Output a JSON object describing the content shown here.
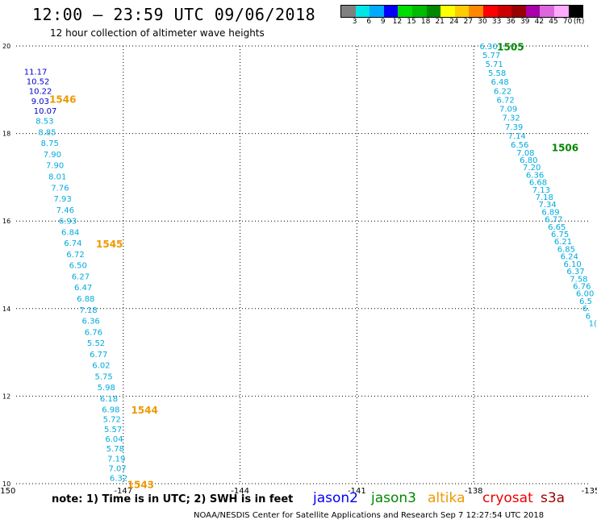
{
  "header": {
    "title": "12:00 – 23:59 UTC 09/06/2018",
    "subtitle": "12 hour collection of altimeter wave heights"
  },
  "colorbar": {
    "colors": [
      "#808080",
      "#00e5e5",
      "#00aaff",
      "#0000ff",
      "#00dd00",
      "#00bb00",
      "#008800",
      "#ffff00",
      "#ffcc00",
      "#ff8800",
      "#ff0000",
      "#cc0000",
      "#990000",
      "#aa00aa",
      "#dd66dd",
      "#ffaaff",
      "#000000"
    ],
    "labels": [
      "3",
      "6",
      "9",
      "12",
      "15",
      "18",
      "21",
      "24",
      "27",
      "30",
      "33",
      "36",
      "39",
      "42",
      "45",
      "70",
      "(ft)"
    ]
  },
  "map": {
    "lon_ticks": [
      "-150",
      "-147",
      "-144",
      "-141",
      "-138",
      "-135"
    ],
    "lat_ticks": [
      "20",
      "18",
      "16",
      "14",
      "12",
      "10"
    ],
    "lon_range": [
      -150,
      -135
    ],
    "lat_range": [
      10,
      20
    ]
  },
  "pass_labels": [
    {
      "text": "1505",
      "lon": -137.4,
      "lat": 19.9,
      "color": "#008800"
    },
    {
      "text": "1506",
      "lon": -136.0,
      "lat": 17.6,
      "color": "#008800"
    },
    {
      "text": "1546",
      "lon": -148.9,
      "lat": 18.7,
      "color": "#ee9900"
    },
    {
      "text": "1545",
      "lon": -147.7,
      "lat": 15.4,
      "color": "#ee9900"
    },
    {
      "text": "1544",
      "lon": -146.8,
      "lat": 11.6,
      "color": "#ee9900"
    },
    {
      "text": "1543",
      "lon": -146.9,
      "lat": 9.9,
      "color": "#ee9900"
    }
  ],
  "tracks": [
    {
      "name": "jason2-1546",
      "color": "#0000cc",
      "lat_start": 19.35,
      "lat_end": 18.45,
      "lon_start": -149.55,
      "lon_end": -149.3,
      "values": [
        "11.17",
        "10.52",
        "10.22",
        "9.03",
        "10.07"
      ]
    },
    {
      "name": "altika-1545",
      "color": "#00aadd",
      "lat_start": 18.22,
      "lat_end": 11.88,
      "lon_start": -149.25,
      "lon_end": -147.6,
      "values": [
        "8.53",
        "8.85",
        "8.75",
        "7.90",
        "7.90",
        "8.01",
        "7.76",
        "7.93",
        "7.46",
        "6.93",
        "6.84",
        "6.74",
        "6.72",
        "6.50",
        "6.27",
        "6.47",
        "6.88",
        "7.18",
        "6.36",
        "6.76",
        "5.52",
        "6.77",
        "6.02",
        "5.75",
        "5.98",
        "6.18"
      ]
    },
    {
      "name": "altika-1544",
      "color": "#00aadd",
      "lat_start": 11.63,
      "lat_end": 10.06,
      "lon_start": -147.55,
      "lon_end": -147.35,
      "values": [
        "6.98",
        "5.72",
        "5.57",
        "6.04",
        "5.78",
        "7.19",
        "7.07",
        "6.32"
      ]
    },
    {
      "name": "jason3-1505",
      "color": "#00aadd",
      "lat_start": 19.93,
      "lat_end": 17.68,
      "lon_start": -137.85,
      "lon_end": -137.05,
      "values": [
        "6.30",
        "5.77",
        "5.71",
        "5.58",
        "6.48",
        "6.22",
        "6.72",
        "7.09",
        "7.32",
        "7.39",
        "7.14",
        "6.56"
      ]
    },
    {
      "name": "jason3-1506",
      "color": "#00aadd",
      "lat_start": 17.5,
      "lat_end": 13.6,
      "lon_start": -136.9,
      "lon_end": -135.05,
      "values": [
        "7.08",
        "6.80",
        "7.20",
        "6.36",
        "6.68",
        "7.13",
        "7.18",
        "7.34",
        "6.89",
        "6.77",
        "6.65",
        "6.75",
        "6.21",
        "6.85",
        "6.24",
        "6.10",
        "6.37",
        "7.58",
        "6.76",
        "6.00",
        "6.5",
        "6.",
        "6",
        "1("
      ]
    }
  ],
  "note": "note:  1) Time is in UTC;  2) SWH is in feet",
  "satellites": [
    {
      "name": "jason2",
      "color": "#0000ff"
    },
    {
      "name": "jason3",
      "color": "#008800"
    },
    {
      "name": "altika",
      "color": "#ee9900"
    },
    {
      "name": "cryosat",
      "color": "#ee0000"
    },
    {
      "name": "s3a",
      "color": "#990000"
    }
  ],
  "footer": "NOAA/NESDIS Center for Satellite Applications and Research    Sep  7 12:27:54 UTC 2018"
}
